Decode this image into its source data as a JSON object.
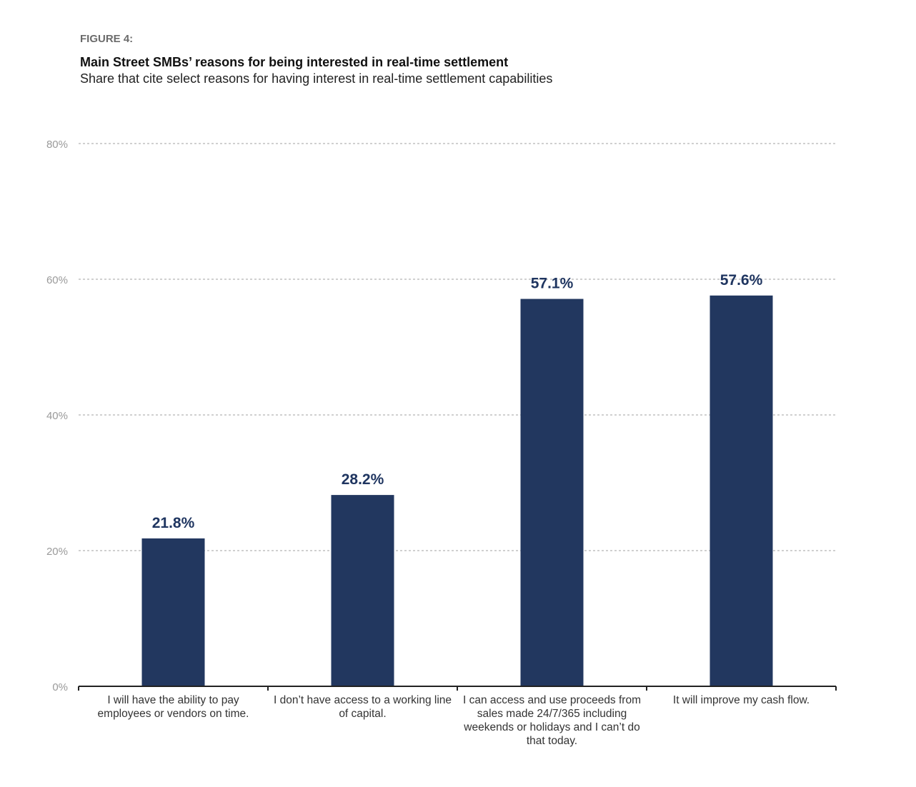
{
  "figure_label": "FIGURE 4:",
  "chart_data": {
    "type": "bar",
    "title": "Main Street SMBs’ reasons for being interested in real-time settlement",
    "subtitle": "Share that cite select reasons for having interest in real-time settlement capabilities",
    "categories": [
      "I will have the ability to pay employees or vendors on time.",
      "I don’t have access to a working line of capital.",
      "I can access and use proceeds from sales made 24/7/365 including weekends or holidays and I can’t do that today.",
      "It will improve my cash flow."
    ],
    "values": [
      21.8,
      28.2,
      57.1,
      57.6
    ],
    "data_labels": [
      "21.8%",
      "28.2%",
      "57.1%",
      "57.6%"
    ],
    "yticks": [
      "0%",
      "20%",
      "40%",
      "60%",
      "80%"
    ],
    "ytick_values": [
      0,
      20,
      40,
      60,
      80
    ],
    "ylim": [
      0,
      80
    ],
    "xlabel": "",
    "ylabel": "",
    "grid": true,
    "bar_color": "#22375f"
  }
}
